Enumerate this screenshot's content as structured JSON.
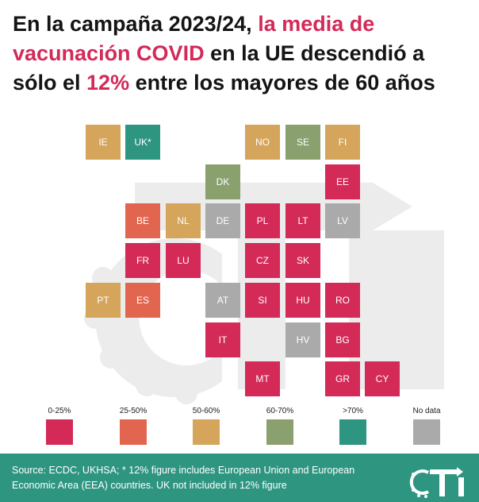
{
  "title": {
    "part1": "En la campaña 2023/24, ",
    "highlight1": "la media de vacunación COVID",
    "part2": " en la UE descendió a sólo el ",
    "highlight2": "12%",
    "part3": " entre los mayores de 60 años"
  },
  "colors": {
    "0-25": "#d32a58",
    "25-50": "#e2664f",
    "50-60": "#d5a55b",
    "60-70": "#8aa06e",
    "70+": "#2e9581",
    "no_data": "#aaaaaa",
    "title_highlight": "#d32a58",
    "footer_bg": "#2e9581"
  },
  "tiles": [
    {
      "code": "IE",
      "category": "50-60"
    },
    {
      "code": "UK*",
      "category": "70+"
    },
    {
      "code": "NO",
      "category": "50-60"
    },
    {
      "code": "SE",
      "category": "60-70"
    },
    {
      "code": "FI",
      "category": "50-60"
    },
    {
      "code": "DK",
      "category": "60-70"
    },
    {
      "code": "EE",
      "category": "0-25"
    },
    {
      "code": "BE",
      "category": "25-50"
    },
    {
      "code": "NL",
      "category": "50-60"
    },
    {
      "code": "DE",
      "category": "no_data"
    },
    {
      "code": "PL",
      "category": "0-25"
    },
    {
      "code": "LT",
      "category": "0-25"
    },
    {
      "code": "LV",
      "category": "no_data"
    },
    {
      "code": "FR",
      "category": "0-25"
    },
    {
      "code": "LU",
      "category": "0-25"
    },
    {
      "code": "CZ",
      "category": "0-25"
    },
    {
      "code": "SK",
      "category": "0-25"
    },
    {
      "code": "PT",
      "category": "50-60"
    },
    {
      "code": "ES",
      "category": "25-50"
    },
    {
      "code": "AT",
      "category": "no_data"
    },
    {
      "code": "SI",
      "category": "0-25"
    },
    {
      "code": "HU",
      "category": "0-25"
    },
    {
      "code": "RO",
      "category": "0-25"
    },
    {
      "code": "IT",
      "category": "0-25"
    },
    {
      "code": "HV",
      "category": "no_data"
    },
    {
      "code": "BG",
      "category": "0-25"
    },
    {
      "code": "MT",
      "category": "0-25"
    },
    {
      "code": "GR",
      "category": "0-25"
    },
    {
      "code": "CY",
      "category": "0-25"
    }
  ],
  "legend": [
    {
      "label": "0-25%",
      "category": "0-25"
    },
    {
      "label": "25-50%",
      "category": "25-50"
    },
    {
      "label": "50-60%",
      "category": "50-60"
    },
    {
      "label": "60-70%",
      "category": "60-70"
    },
    {
      "label": ">70%",
      "category": "70+"
    },
    {
      "label": "No data",
      "category": "no_data"
    }
  ],
  "footer": {
    "source_text": "Source: ECDC, UKHSA; * 12% figure includes European Union and European Economic Area (EEA) countries. UK not included in 12% figure",
    "logo_text": "CTI"
  }
}
